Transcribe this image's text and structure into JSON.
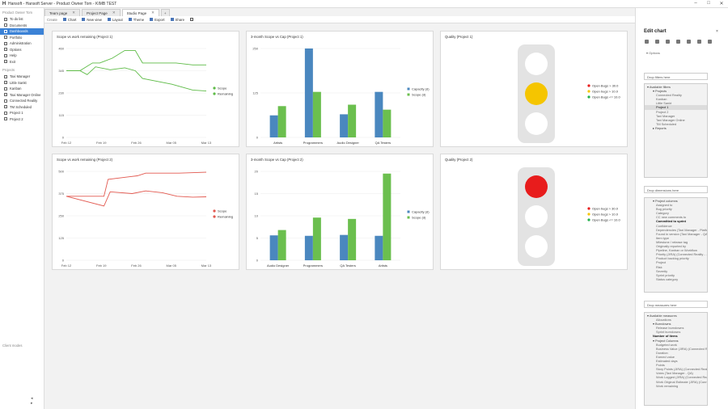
{
  "window": {
    "title": "Hansoft - Hansoft Server - Product Owner Tom - KIMB TEST",
    "app_glyph": "H",
    "controls": [
      "–",
      "□",
      "✕"
    ]
  },
  "left": {
    "header": "Product Owner Tom",
    "nav": [
      {
        "label": "To do list",
        "icon": "checklist-icon"
      },
      {
        "label": "Documents",
        "icon": "document-icon"
      },
      {
        "label": "Dashboards",
        "icon": "dashboard-icon",
        "active": true
      },
      {
        "label": "Portfolio",
        "icon": "portfolio-icon"
      },
      {
        "label": "Administration",
        "icon": "admin-icon"
      },
      {
        "label": "Options",
        "icon": "gear-icon"
      },
      {
        "label": "Help",
        "icon": "help-icon"
      },
      {
        "label": "Exit",
        "icon": "exit-icon"
      }
    ],
    "projects_label": "Projects",
    "projects": [
      "Taxi Manager",
      "Little Sankt",
      "Kanban",
      "Taxi Manager Online",
      "Connected Reality",
      "TM Scheduled",
      "Project 1",
      "Project 2"
    ],
    "footer": "Client modes",
    "arrows": "◂ ▸"
  },
  "tabs": [
    {
      "label": "Team page",
      "x": "✕"
    },
    {
      "label": "Project Page",
      "x": "✕"
    },
    {
      "label": "Studio Page",
      "x": "✕",
      "selected": true
    }
  ],
  "tab_add": "+",
  "toolbar": {
    "create": "Create",
    "items": [
      "Chart",
      "New view",
      "Layout",
      "Theme",
      "Export",
      "Share"
    ]
  },
  "charts": {
    "burn1": {
      "title": "Scope vs work remaining (Project 1)"
    },
    "bar1": {
      "title": "3-month Scope vs Cap (Project 1)"
    },
    "quality1": {
      "title": "Quality (Project 1)"
    },
    "burn2": {
      "title": "Scope vs work remaining (Project 2)"
    },
    "bar2": {
      "title": "3-month Scope vs Cap (Project 2)"
    },
    "quality2": {
      "title": "Quality (Project 2)"
    }
  },
  "chart_data": [
    {
      "id": "burn1",
      "type": "line",
      "title": "Scope vs work remaining (Project 1)",
      "x": [
        "Feb 12",
        "Feb 19",
        "Feb 26",
        "Mar 05",
        "Mar 13"
      ],
      "y_ticks": [
        0,
        115,
        230,
        345,
        460
      ],
      "ylim": [
        0,
        460
      ],
      "series": [
        {
          "name": "Scope",
          "color": "#5dbb46",
          "points": [
            [
              0,
              345
            ],
            [
              1.3,
              345
            ],
            [
              2.5,
              385
            ],
            [
              3.2,
              385
            ],
            [
              4.4,
              410
            ],
            [
              5.6,
              450
            ],
            [
              6.6,
              450
            ],
            [
              7.3,
              385
            ],
            [
              10.5,
              385
            ],
            [
              12.1,
              375
            ],
            [
              13.4,
              375
            ]
          ]
        },
        {
          "name": "Remaining",
          "color": "#5dbb46",
          "points": [
            [
              0,
              345
            ],
            [
              1.3,
              345
            ],
            [
              2.0,
              325
            ],
            [
              2.8,
              365
            ],
            [
              4.2,
              350
            ],
            [
              5.6,
              360
            ],
            [
              6.6,
              345
            ],
            [
              7.3,
              305
            ],
            [
              10.1,
              275
            ],
            [
              12.1,
              245
            ],
            [
              13.4,
              240
            ]
          ]
        }
      ],
      "legend": "right"
    },
    {
      "id": "burn2",
      "type": "line",
      "title": "Scope vs work remaining (Project 2)",
      "x": [
        "Feb 12",
        "Feb 19",
        "Feb 26",
        "Mar 05",
        "Mar 13"
      ],
      "y_ticks": [
        0,
        125,
        250,
        375,
        500
      ],
      "ylim": [
        0,
        500
      ],
      "series": [
        {
          "name": "Scope",
          "color": "#e2584f",
          "points": [
            [
              0,
              360
            ],
            [
              3.6,
              360
            ],
            [
              4.0,
              455
            ],
            [
              6.1,
              470
            ],
            [
              6.8,
              475
            ],
            [
              7.6,
              490
            ],
            [
              10.8,
              490
            ],
            [
              13.4,
              495
            ]
          ]
        },
        {
          "name": "Remaining",
          "color": "#e2584f",
          "points": [
            [
              0,
              360
            ],
            [
              3.6,
              305
            ],
            [
              4.2,
              385
            ],
            [
              6.3,
              375
            ],
            [
              7.6,
              390
            ],
            [
              9.2,
              380
            ],
            [
              10.6,
              360
            ],
            [
              12.1,
              355
            ],
            [
              13.4,
              357
            ]
          ]
        }
      ],
      "legend": "right"
    },
    {
      "id": "bar1",
      "type": "bar",
      "title": "3-month Scope vs Cap (Project 1)",
      "categories": [
        "Artists",
        "Programmers",
        "Audio Designer",
        "QA Testers"
      ],
      "y_ticks": [
        0,
        125,
        250
      ],
      "ylim": [
        0,
        250
      ],
      "series": [
        {
          "name": "Capacity (d)",
          "color": "#4a87bf",
          "values": [
            62,
            250,
            65,
            128
          ]
        },
        {
          "name": "Scope (d)",
          "color": "#6bbf4e",
          "values": [
            88,
            128,
            92,
            78
          ]
        }
      ],
      "legend": "right"
    },
    {
      "id": "bar2",
      "type": "bar",
      "title": "3-month Scope vs Cap (Project 2)",
      "categories": [
        "Audio Designer",
        "Programmers",
        "QA Testers",
        "Artists"
      ],
      "y_ticks": [
        0,
        5,
        10,
        15,
        20
      ],
      "ylim": [
        0,
        20
      ],
      "series": [
        {
          "name": "Capacity (d)",
          "color": "#4a87bf",
          "values": [
            5.6,
            5.5,
            5.7,
            5.5
          ]
        },
        {
          "name": "Scope (d)",
          "color": "#6bbf4e",
          "values": [
            6.8,
            9.6,
            9.3,
            19.5
          ]
        }
      ],
      "legend": "right"
    },
    {
      "id": "quality1",
      "type": "traffic-light",
      "title": "Quality (Project 1)",
      "active": "yellow",
      "legend": [
        {
          "label": "Open Bugs > 30.0",
          "color": "#e81c1c"
        },
        {
          "label": "Open bugs > 10.0",
          "color": "#f5c500"
        },
        {
          "label": "Open Bugs <= 10.0",
          "color": "#22b14c"
        }
      ]
    },
    {
      "id": "quality2",
      "type": "traffic-light",
      "title": "Quality (Project 2)",
      "active": "red",
      "legend": [
        {
          "label": "Open bugs > 30.0",
          "color": "#e81c1c"
        },
        {
          "label": "Open bugs > 10.0",
          "color": "#f5c500"
        },
        {
          "label": "Open Bugs <= 10.0",
          "color": "#22b14c"
        }
      ]
    }
  ],
  "right": {
    "title": "Edit chart",
    "close": "×",
    "toolbar_icons": [
      "bar-chart-icon",
      "pie-chart-icon",
      "line-chart-icon",
      "area-chart-icon",
      "scatter-chart-icon",
      "gauge-icon",
      "table-icon"
    ],
    "options": "▾ Options",
    "drop_filters": "Drop filters here",
    "filters": [
      {
        "t": "▾ Available filters",
        "l": 1
      },
      {
        "t": "▾ Projects",
        "l": 2
      },
      {
        "t": "Connected Reality",
        "l": 3
      },
      {
        "t": "Kanban",
        "l": 3
      },
      {
        "t": "Little Sankt",
        "l": 3
      },
      {
        "t": "Project 1",
        "l": 3,
        "sel": true
      },
      {
        "t": "Project 2",
        "l": 3
      },
      {
        "t": "Taxi Manager",
        "l": 3
      },
      {
        "t": "Taxi Manager Online",
        "l": 3
      },
      {
        "t": "TM Scheduled",
        "l": 3
      },
      {
        "t": "▸ Reports",
        "l": 2
      }
    ],
    "drop_dimensions": "Drop dimensions here",
    "dimensions": [
      {
        "t": "▾ Project columns",
        "l": 2
      },
      {
        "t": "Assigned to",
        "l": 3
      },
      {
        "t": "Bug priority",
        "l": 3
      },
      {
        "t": "Category",
        "l": 3
      },
      {
        "t": "CC new comments to",
        "l": 3
      },
      {
        "t": "Committed to sprint",
        "l": 3,
        "bold": true
      },
      {
        "t": "Confidence",
        "l": 3
      },
      {
        "t": "Dependencies (Taxi Manager - Platfo...",
        "l": 3
      },
      {
        "t": "Found in version (Taxi Manager - QA)",
        "l": 3
      },
      {
        "t": "Item type",
        "l": 3
      },
      {
        "t": "Milestone / release tag",
        "l": 3
      },
      {
        "t": "Originally reported by",
        "l": 3
      },
      {
        "t": "Pipeline, Kanban or Workflow",
        "l": 3
      },
      {
        "t": "Priority (JIRA) (Connected Reality - ...",
        "l": 3
      },
      {
        "t": "Product backlog priority",
        "l": 3
      },
      {
        "t": "Project",
        "l": 3
      },
      {
        "t": "Risk",
        "l": 3
      },
      {
        "t": "Severity",
        "l": 3
      },
      {
        "t": "Sprint priority",
        "l": 3
      },
      {
        "t": "Status category",
        "l": 3
      }
    ],
    "drop_measures": "Drop measures here",
    "measures": [
      {
        "t": "▾ Available measures",
        "l": 1
      },
      {
        "t": "Allocations",
        "l": 3
      },
      {
        "t": "▾ Burndowns",
        "l": 2
      },
      {
        "t": "Release burndowns",
        "l": 3
      },
      {
        "t": "Sprint burndowns",
        "l": 3
      },
      {
        "t": "Number of items",
        "l": 2,
        "bold": true
      },
      {
        "t": "▾ Project Columns",
        "l": 2
      },
      {
        "t": "Budgeted work",
        "l": 3
      },
      {
        "t": "Business Value (JIRA) (Connected Realit...",
        "l": 3
      },
      {
        "t": "Duration",
        "l": 3
      },
      {
        "t": "Earned value",
        "l": 3
      },
      {
        "t": "Estimated days",
        "l": 3
      },
      {
        "t": "Points",
        "l": 3
      },
      {
        "t": "Story Points (JIRA) (Connected Reality - ...",
        "l": 3
      },
      {
        "t": "Votes (Taxi Manager - QA)",
        "l": 3
      },
      {
        "t": "Work Logged (JIRA) (Connected Reality - ...",
        "l": 3
      },
      {
        "t": "Work Original Estimate (JIRA) (Connect...",
        "l": 3
      },
      {
        "t": "Work remaining",
        "l": 3
      }
    ]
  }
}
